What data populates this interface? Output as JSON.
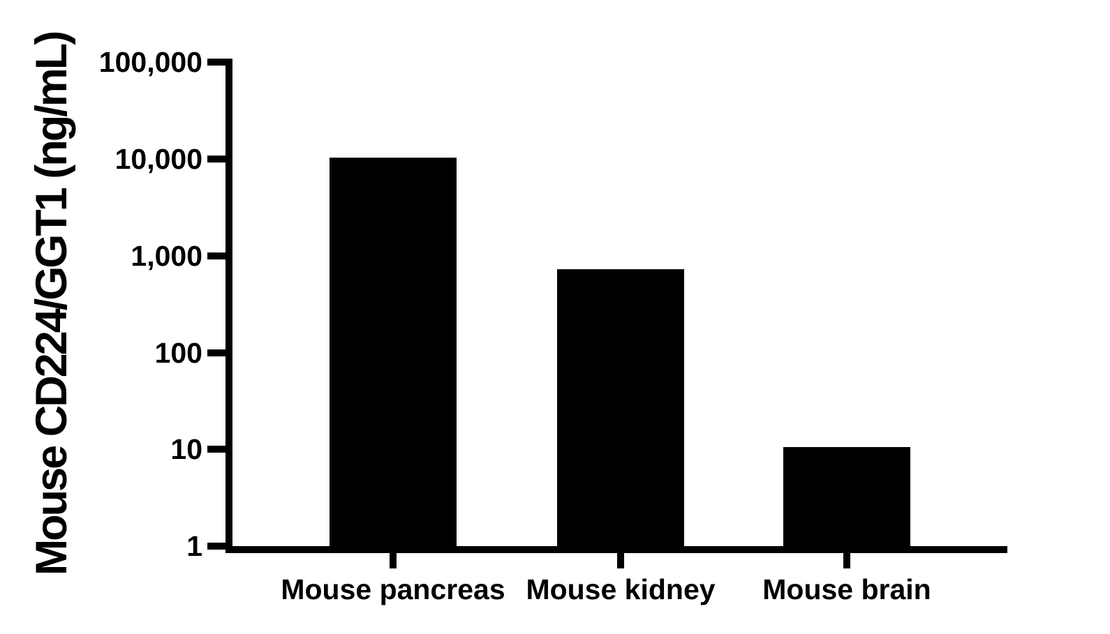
{
  "chart_data": {
    "type": "bar",
    "title": "",
    "ylabel": "Mouse CD224/GGT1 (ng/mL)",
    "xlabel": "",
    "categories": [
      "Mouse pancreas",
      "Mouse kidney",
      "Mouse brain"
    ],
    "values": [
      10300,
      730,
      10.6
    ],
    "yscale": "log",
    "ylim": [
      1,
      100000
    ],
    "ytick_labels": [
      "100,000",
      "10,000",
      "1,000",
      "100",
      "10",
      "1"
    ],
    "ytick_values": [
      100000,
      10000,
      1000,
      100,
      10,
      1
    ],
    "grid": false,
    "legend": null,
    "bar_color": "#000000",
    "background_color": "#ffffff",
    "text_color": "#000000"
  }
}
